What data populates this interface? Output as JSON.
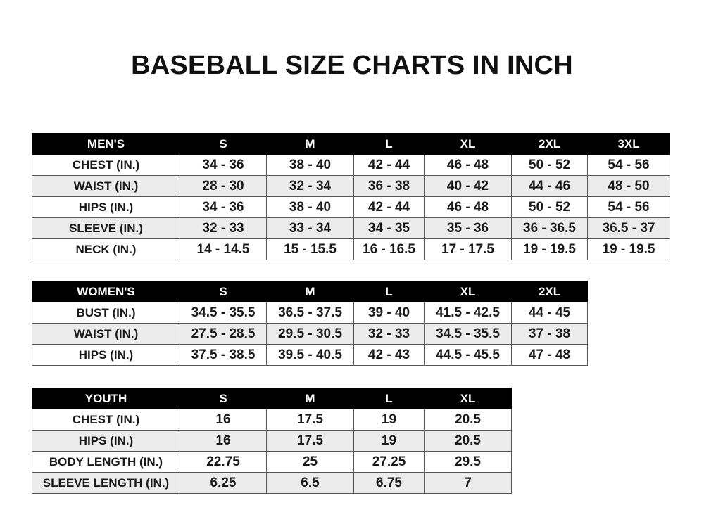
{
  "title": "BASEBALL SIZE CHARTS IN INCH",
  "men": {
    "header": [
      "MEN'S",
      "S",
      "M",
      "L",
      "XL",
      "2XL",
      "3XL"
    ],
    "rows": [
      [
        "CHEST (IN.)",
        "34 - 36",
        "38 - 40",
        "42 - 44",
        "46 - 48",
        "50 - 52",
        "54 - 56"
      ],
      [
        "WAIST (IN.)",
        "28 - 30",
        "32 - 34",
        "36 - 38",
        "40 - 42",
        "44 - 46",
        "48 - 50"
      ],
      [
        "HIPS (IN.)",
        "34 - 36",
        "38 - 40",
        "42 - 44",
        "46 - 48",
        "50 - 52",
        "54 - 56"
      ],
      [
        "SLEEVE (IN.)",
        "32 - 33",
        "33 - 34",
        "34 - 35",
        "35 - 36",
        "36 - 36.5",
        "36.5 - 37"
      ],
      [
        "NECK (IN.)",
        "14 - 14.5",
        "15 - 15.5",
        "16 - 16.5",
        "17 - 17.5",
        "19 - 19.5",
        "19 - 19.5"
      ]
    ]
  },
  "women": {
    "header": [
      "WOMEN'S",
      "S",
      "M",
      "L",
      "XL",
      "2XL"
    ],
    "rows": [
      [
        "BUST (IN.)",
        "34.5 - 35.5",
        "36.5 - 37.5",
        "39 - 40",
        "41.5 - 42.5",
        "44 - 45"
      ],
      [
        "WAIST (IN.)",
        "27.5 - 28.5",
        "29.5 - 30.5",
        "32 - 33",
        "34.5 - 35.5",
        "37 - 38"
      ],
      [
        "HIPS (IN.)",
        "37.5 - 38.5",
        "39.5 - 40.5",
        "42 - 43",
        "44.5 - 45.5",
        "47 - 48"
      ]
    ]
  },
  "youth": {
    "header": [
      "YOUTH",
      "S",
      "M",
      "L",
      "XL"
    ],
    "rows": [
      [
        "CHEST (IN.)",
        "16",
        "17.5",
        "19",
        "20.5"
      ],
      [
        "HIPS (IN.)",
        "16",
        "17.5",
        "19",
        "20.5"
      ],
      [
        "BODY LENGTH (IN.)",
        "22.75",
        "25",
        "27.25",
        "29.5"
      ],
      [
        "SLEEVE LENGTH (IN.)",
        "6.25",
        "6.5",
        "6.75",
        "7"
      ]
    ]
  }
}
